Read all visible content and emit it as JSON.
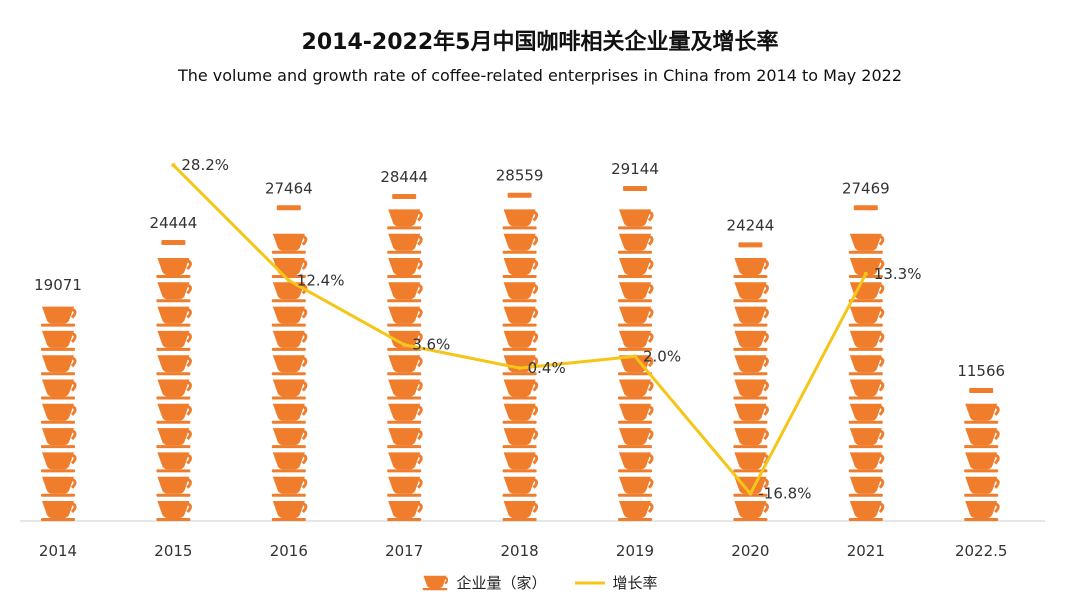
{
  "title": "2014-2022年5月中国咖啡相关企业量及增长率",
  "subtitle": "The volume and growth rate of coffee-related enterprises in China from 2014 to May 2022",
  "colors": {
    "cup": "#ef7d2c",
    "line": "#f5c518"
  },
  "chart_data": {
    "type": "bar",
    "categories": [
      "2014",
      "2015",
      "2016",
      "2017",
      "2018",
      "2019",
      "2020",
      "2021",
      "2022.5"
    ],
    "series": [
      {
        "name": "企业量（家）",
        "type": "bar",
        "values": [
          19071,
          24444,
          27464,
          28444,
          28559,
          29144,
          24244,
          27469,
          11566
        ]
      },
      {
        "name": "增长率",
        "type": "line",
        "values": [
          null,
          28.2,
          12.4,
          3.6,
          0.4,
          2.0,
          -16.8,
          13.3,
          null
        ],
        "labels": [
          "",
          "28.2%",
          "12.4%",
          "3.6%",
          "0.4%",
          "2.0%",
          "-16.8%",
          "13.3%",
          ""
        ]
      }
    ],
    "legend": "bottom",
    "grid": false
  },
  "legend": {
    "bar_label": "企业量（家）",
    "line_label": "增长率"
  }
}
